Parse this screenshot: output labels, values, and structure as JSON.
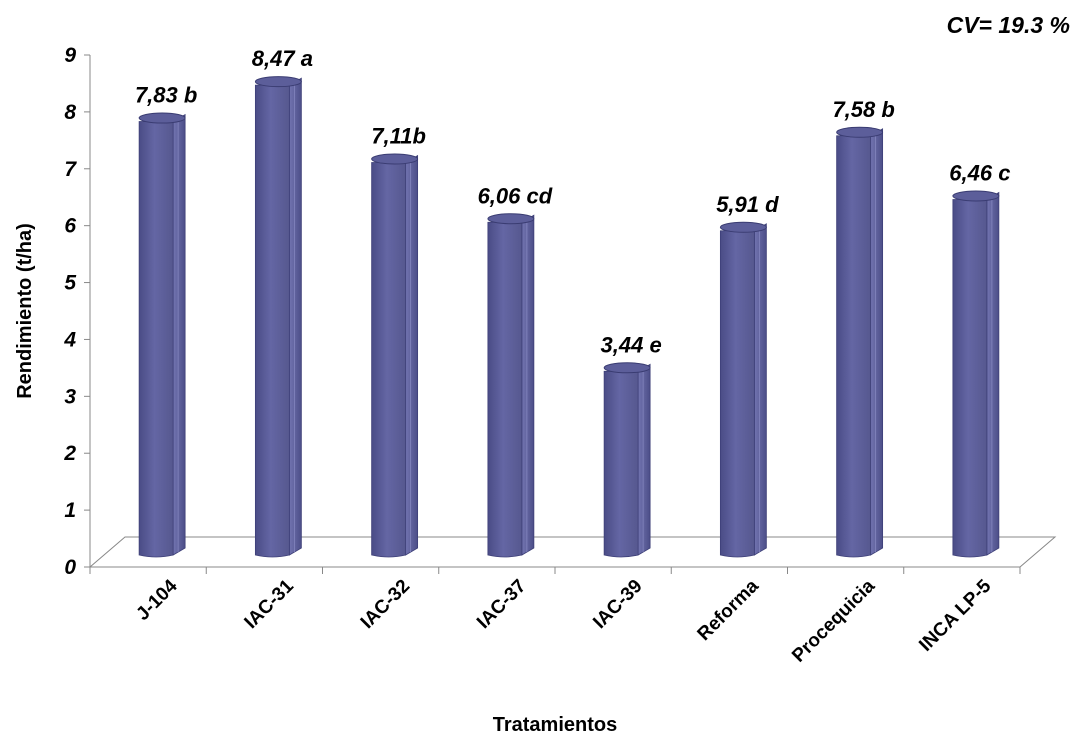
{
  "chart_data": {
    "type": "bar",
    "title": "",
    "xlabel": "Tratamientos",
    "ylabel": "Rendimiento (t/ha)",
    "ylim": [
      0,
      9
    ],
    "y_ticks": [
      "0",
      "1",
      "2",
      "3",
      "4",
      "5",
      "6",
      "7",
      "8",
      "9"
    ],
    "categories": [
      "J-104",
      "IAC-31",
      "IAC-32",
      "IAC-37",
      "IAC-39",
      "Reforma",
      "Procequicia",
      "INCA LP-5"
    ],
    "values": [
      7.83,
      8.47,
      7.11,
      6.06,
      3.44,
      5.91,
      7.58,
      6.46
    ],
    "data_labels": [
      "7,83 b",
      "8,47 a",
      "7,11b",
      "6,06 cd",
      "3,44 e",
      "5,91 d",
      "7,58 b",
      "6,46 c"
    ],
    "annotation": "CV= 19.3 %",
    "bar_color": "#5c5e9a",
    "grid": false,
    "legend": "none"
  }
}
